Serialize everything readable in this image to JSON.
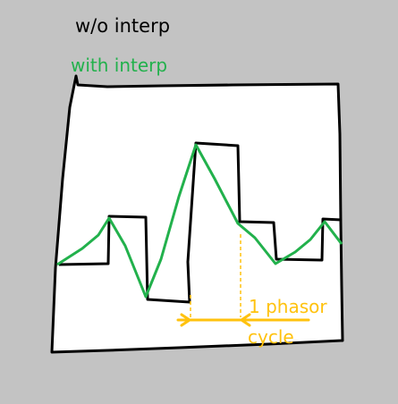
{
  "labels": {
    "without_interp": "w/o interp",
    "with_interp": "with interp",
    "phasor_line1": "1 phasor",
    "phasor_line2": "cycle"
  },
  "colors": {
    "background": "#c3c3c3",
    "panel": "#ffffff",
    "ink": "#000000",
    "interp": "#22b14c",
    "annotation": "#ffc20e"
  }
}
